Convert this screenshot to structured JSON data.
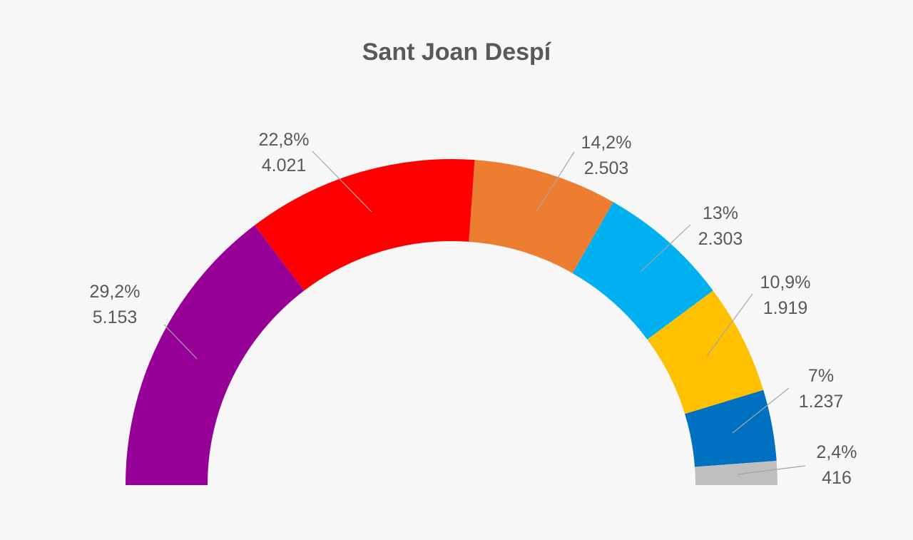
{
  "chart_data": {
    "type": "pie",
    "subtype": "semicircle-donut",
    "title": "Sant Joan Despí",
    "legend": "none",
    "slices": [
      {
        "percent_label": "29,2%",
        "value_label": "5.153",
        "value": 5153,
        "percent": 29.2,
        "color": "#960096"
      },
      {
        "percent_label": "22,8%",
        "value_label": "4.021",
        "value": 4021,
        "percent": 22.8,
        "color": "#ff0000"
      },
      {
        "percent_label": "14,2%",
        "value_label": "2.503",
        "value": 2503,
        "percent": 14.2,
        "color": "#ed7d31"
      },
      {
        "percent_label": "13%",
        "value_label": "2.303",
        "value": 2303,
        "percent": 13.0,
        "color": "#00b0f0"
      },
      {
        "percent_label": "10,9%",
        "value_label": "1.919",
        "value": 1919,
        "percent": 10.9,
        "color": "#ffc000"
      },
      {
        "percent_label": "7%",
        "value_label": "1.237",
        "value": 1237,
        "percent": 7.0,
        "color": "#0070c0"
      },
      {
        "percent_label": "2,4%",
        "value_label": "416",
        "value": 416,
        "percent": 2.4,
        "color": "#bfbfbf"
      }
    ]
  }
}
